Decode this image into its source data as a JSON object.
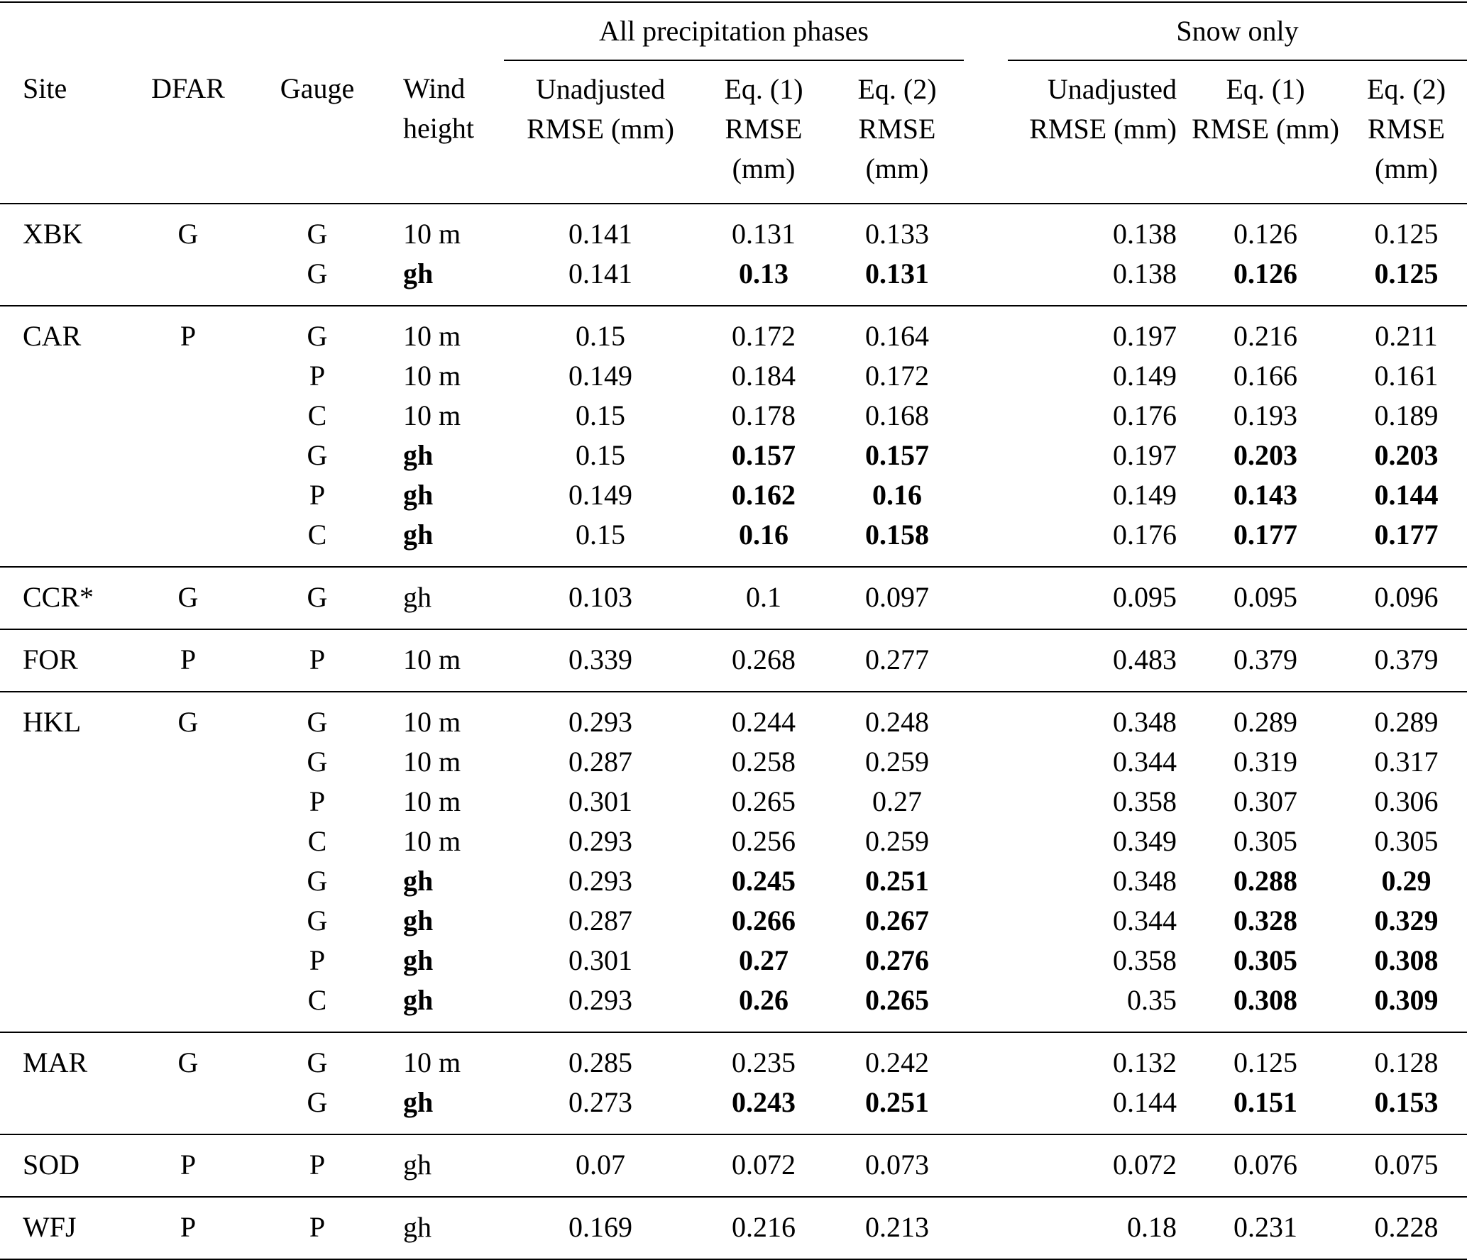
{
  "header": {
    "group_all": "All precipitation phases",
    "group_snow": "Snow only",
    "site": "Site",
    "dfar": "DFAR",
    "gauge": "Gauge",
    "wind_height": "Wind height",
    "unadj_rmse": "Unadjusted RMSE (mm)",
    "eq1_rmse": "Eq. (1) RMSE (mm)",
    "eq2_rmse": "Eq. (2) RMSE (mm)"
  },
  "groups": [
    {
      "site": "XBK",
      "dfar": "G",
      "rows": [
        {
          "gauge": "G",
          "wind": "10 m",
          "bold": false,
          "all": [
            "0.141",
            "0.131",
            "0.133"
          ],
          "snow": [
            "0.138",
            "0.126",
            "0.125"
          ]
        },
        {
          "gauge": "G",
          "wind": "gh",
          "bold": true,
          "all": [
            "0.141",
            "0.13",
            "0.131"
          ],
          "snow": [
            "0.138",
            "0.126",
            "0.125"
          ]
        }
      ]
    },
    {
      "site": "CAR",
      "dfar": "P",
      "rows": [
        {
          "gauge": "G",
          "wind": "10 m",
          "bold": false,
          "all": [
            "0.15",
            "0.172",
            "0.164"
          ],
          "snow": [
            "0.197",
            "0.216",
            "0.211"
          ]
        },
        {
          "gauge": "P",
          "wind": "10 m",
          "bold": false,
          "all": [
            "0.149",
            "0.184",
            "0.172"
          ],
          "snow": [
            "0.149",
            "0.166",
            "0.161"
          ]
        },
        {
          "gauge": "C",
          "wind": "10 m",
          "bold": false,
          "all": [
            "0.15",
            "0.178",
            "0.168"
          ],
          "snow": [
            "0.176",
            "0.193",
            "0.189"
          ]
        },
        {
          "gauge": "G",
          "wind": "gh",
          "bold": true,
          "all": [
            "0.15",
            "0.157",
            "0.157"
          ],
          "snow": [
            "0.197",
            "0.203",
            "0.203"
          ]
        },
        {
          "gauge": "P",
          "wind": "gh",
          "bold": true,
          "all": [
            "0.149",
            "0.162",
            "0.16"
          ],
          "snow": [
            "0.149",
            "0.143",
            "0.144"
          ]
        },
        {
          "gauge": "C",
          "wind": "gh",
          "bold": true,
          "all": [
            "0.15",
            "0.16",
            "0.158"
          ],
          "snow": [
            "0.176",
            "0.177",
            "0.177"
          ]
        }
      ]
    },
    {
      "site": "CCR*",
      "dfar": "G",
      "rows": [
        {
          "gauge": "G",
          "wind": "gh",
          "bold": false,
          "all": [
            "0.103",
            "0.1",
            "0.097"
          ],
          "snow": [
            "0.095",
            "0.095",
            "0.096"
          ]
        }
      ]
    },
    {
      "site": "FOR",
      "dfar": "P",
      "rows": [
        {
          "gauge": "P",
          "wind": "10 m",
          "bold": false,
          "all": [
            "0.339",
            "0.268",
            "0.277"
          ],
          "snow": [
            "0.483",
            "0.379",
            "0.379"
          ]
        }
      ]
    },
    {
      "site": "HKL",
      "dfar": "G",
      "rows": [
        {
          "gauge": "G",
          "wind": "10 m",
          "bold": false,
          "all": [
            "0.293",
            "0.244",
            "0.248"
          ],
          "snow": [
            "0.348",
            "0.289",
            "0.289"
          ]
        },
        {
          "gauge": "G",
          "wind": "10 m",
          "bold": false,
          "all": [
            "0.287",
            "0.258",
            "0.259"
          ],
          "snow": [
            "0.344",
            "0.319",
            "0.317"
          ]
        },
        {
          "gauge": "P",
          "wind": "10 m",
          "bold": false,
          "all": [
            "0.301",
            "0.265",
            "0.27"
          ],
          "snow": [
            "0.358",
            "0.307",
            "0.306"
          ]
        },
        {
          "gauge": "C",
          "wind": "10 m",
          "bold": false,
          "all": [
            "0.293",
            "0.256",
            "0.259"
          ],
          "snow": [
            "0.349",
            "0.305",
            "0.305"
          ]
        },
        {
          "gauge": "G",
          "wind": "gh",
          "bold": true,
          "all": [
            "0.293",
            "0.245",
            "0.251"
          ],
          "snow": [
            "0.348",
            "0.288",
            "0.29"
          ]
        },
        {
          "gauge": "G",
          "wind": "gh",
          "bold": true,
          "all": [
            "0.287",
            "0.266",
            "0.267"
          ],
          "snow": [
            "0.344",
            "0.328",
            "0.329"
          ]
        },
        {
          "gauge": "P",
          "wind": "gh",
          "bold": true,
          "all": [
            "0.301",
            "0.27",
            "0.276"
          ],
          "snow": [
            "0.358",
            "0.305",
            "0.308"
          ]
        },
        {
          "gauge": "C",
          "wind": "gh",
          "bold": true,
          "all": [
            "0.293",
            "0.26",
            "0.265"
          ],
          "snow": [
            "0.35",
            "0.308",
            "0.309"
          ]
        }
      ]
    },
    {
      "site": "MAR",
      "dfar": "G",
      "rows": [
        {
          "gauge": "G",
          "wind": "10 m",
          "bold": false,
          "all": [
            "0.285",
            "0.235",
            "0.242"
          ],
          "snow": [
            "0.132",
            "0.125",
            "0.128"
          ]
        },
        {
          "gauge": "G",
          "wind": "gh",
          "bold": true,
          "all": [
            "0.273",
            "0.243",
            "0.251"
          ],
          "snow": [
            "0.144",
            "0.151",
            "0.153"
          ]
        }
      ]
    },
    {
      "site": "SOD",
      "dfar": "P",
      "rows": [
        {
          "gauge": "P",
          "wind": "gh",
          "bold": false,
          "all": [
            "0.07",
            "0.072",
            "0.073"
          ],
          "snow": [
            "0.072",
            "0.076",
            "0.075"
          ]
        }
      ]
    },
    {
      "site": "WFJ",
      "dfar": "P",
      "rows": [
        {
          "gauge": "P",
          "wind": "gh",
          "bold": false,
          "all": [
            "0.169",
            "0.216",
            "0.213"
          ],
          "snow": [
            "0.18",
            "0.231",
            "0.228"
          ]
        }
      ]
    }
  ]
}
